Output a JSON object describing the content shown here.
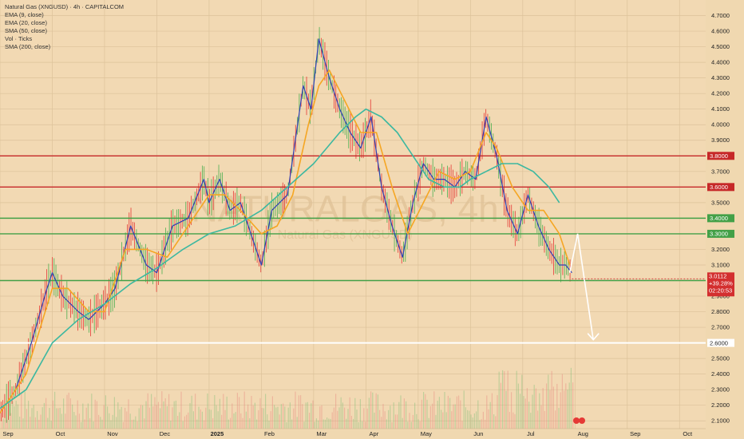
{
  "legend": {
    "title": "Natural Gas (XNGUSD) · 4h · CAPITALCOM",
    "lines": [
      "EMA (9, close)",
      "EMA (20, close)",
      "SMA (50, close)",
      "Vol · Ticks",
      "SMA (200, close)"
    ]
  },
  "watermark": {
    "main": "NATURALGAS, 4h",
    "sub": "Natural Gas (XNGUSD)"
  },
  "colors": {
    "background": "#f0d8b0",
    "ema9": "#2f3fb5",
    "ema20": "#f5a623",
    "sma50": "#3cb8a0",
    "resistance": "#c62828",
    "support": "#43a047",
    "target": "#ffffff",
    "current": "#d32f2f"
  },
  "chart_data": {
    "type": "line",
    "title": "Natural Gas (XNGUSD) · 4h · CAPITALCOM",
    "ylim": [
      2.05,
      4.8
    ],
    "y_ticks": [
      2.1,
      2.2,
      2.3,
      2.4,
      2.5,
      2.6,
      2.7,
      2.8,
      2.9,
      3.0,
      3.1,
      3.2,
      3.3,
      3.4,
      3.5,
      3.6,
      3.7,
      3.8,
      3.9,
      4.0,
      4.1,
      4.2,
      4.3,
      4.4,
      4.5,
      4.6,
      4.7
    ],
    "x_months": [
      "Sep",
      "Oct",
      "Nov",
      "Dec",
      "2025",
      "Feb",
      "Mar",
      "Apr",
      "May",
      "Jun",
      "Jul",
      "Aug",
      "Sep",
      "Oct"
    ],
    "x_month_index": [
      0,
      1,
      2,
      3,
      4,
      5,
      6,
      7,
      8,
      9,
      10,
      11,
      12,
      13
    ],
    "x_end_index": 13.5,
    "series": [
      {
        "name": "EMA (9, close)",
        "x": [
          0,
          0.3,
          0.6,
          0.9,
          1.0,
          1.2,
          1.5,
          1.7,
          2.0,
          2.2,
          2.5,
          2.8,
          3.0,
          3.3,
          3.6,
          3.9,
          4.0,
          4.2,
          4.4,
          4.6,
          4.8,
          5.0,
          5.2,
          5.5,
          5.8,
          5.95,
          6.1,
          6.3,
          6.5,
          6.7,
          6.9,
          7.1,
          7.3,
          7.5,
          7.7,
          7.9,
          8.1,
          8.3,
          8.5,
          8.7,
          8.9,
          9.1,
          9.3,
          9.5,
          9.7,
          9.9,
          10.1,
          10.3,
          10.5,
          10.7,
          10.82,
          10.94
        ],
        "y": [
          2.15,
          2.3,
          2.6,
          2.95,
          3.05,
          2.9,
          2.8,
          2.75,
          2.85,
          2.95,
          3.35,
          3.1,
          3.05,
          3.35,
          3.4,
          3.65,
          3.5,
          3.65,
          3.45,
          3.5,
          3.3,
          3.1,
          3.45,
          3.55,
          4.25,
          4.1,
          4.55,
          4.3,
          4.1,
          3.95,
          3.85,
          4.05,
          3.6,
          3.35,
          3.15,
          3.5,
          3.75,
          3.65,
          3.65,
          3.6,
          3.7,
          3.65,
          4.05,
          3.8,
          3.45,
          3.3,
          3.55,
          3.35,
          3.2,
          3.1,
          3.1,
          3.05
        ]
      },
      {
        "name": "EMA (20, close)",
        "x": [
          0,
          0.5,
          1.0,
          1.3,
          1.7,
          2.0,
          2.4,
          2.8,
          3.2,
          3.6,
          4.0,
          4.3,
          4.6,
          5.0,
          5.3,
          5.6,
          5.9,
          6.1,
          6.3,
          6.6,
          6.9,
          7.2,
          7.5,
          7.8,
          8.1,
          8.4,
          8.7,
          9.0,
          9.3,
          9.5,
          9.8,
          10.1,
          10.4,
          10.7,
          10.9
        ],
        "y": [
          2.15,
          2.4,
          2.95,
          2.95,
          2.8,
          2.8,
          3.2,
          3.2,
          3.15,
          3.35,
          3.55,
          3.55,
          3.45,
          3.3,
          3.35,
          3.55,
          4.0,
          4.25,
          4.35,
          4.15,
          3.95,
          3.95,
          3.6,
          3.3,
          3.5,
          3.7,
          3.65,
          3.7,
          3.95,
          3.85,
          3.6,
          3.45,
          3.45,
          3.3,
          3.1
        ]
      },
      {
        "name": "SMA (50, close)",
        "x": [
          0,
          0.5,
          1.0,
          1.5,
          2.0,
          2.5,
          3.0,
          3.5,
          4.0,
          4.5,
          5.0,
          5.5,
          6.0,
          6.5,
          6.8,
          7.0,
          7.3,
          7.6,
          7.9,
          8.2,
          8.5,
          8.8,
          9.0,
          9.3,
          9.6,
          9.9,
          10.2,
          10.5,
          10.7
        ],
        "y": [
          2.18,
          2.3,
          2.6,
          2.75,
          2.85,
          2.98,
          3.08,
          3.2,
          3.3,
          3.35,
          3.45,
          3.6,
          3.75,
          3.95,
          4.05,
          4.1,
          4.05,
          3.95,
          3.8,
          3.65,
          3.6,
          3.6,
          3.65,
          3.7,
          3.75,
          3.75,
          3.7,
          3.6,
          3.5
        ]
      }
    ],
    "horizontal_levels": [
      {
        "value": 3.8,
        "label": "3.8000",
        "color": "#c62828"
      },
      {
        "value": 3.6,
        "label": "3.6000",
        "color": "#c62828"
      },
      {
        "value": 3.4,
        "label": "3.4000",
        "color": "#43a047"
      },
      {
        "value": 3.3,
        "label": "3.3000",
        "color": "#43a047"
      },
      {
        "value": 3.0,
        "label": "3.0000",
        "color": "#43a047"
      },
      {
        "value": 2.6,
        "label": "2.6000",
        "color": "#ffffff"
      }
    ],
    "current_price": {
      "value": 3.0112,
      "label": "3.0112",
      "change": "+39.28%",
      "countdown": "02:20:53"
    },
    "projection": {
      "x": [
        10.9,
        11.05,
        11.35
      ],
      "y": [
        3.05,
        3.3,
        2.62
      ]
    },
    "grid": true
  }
}
